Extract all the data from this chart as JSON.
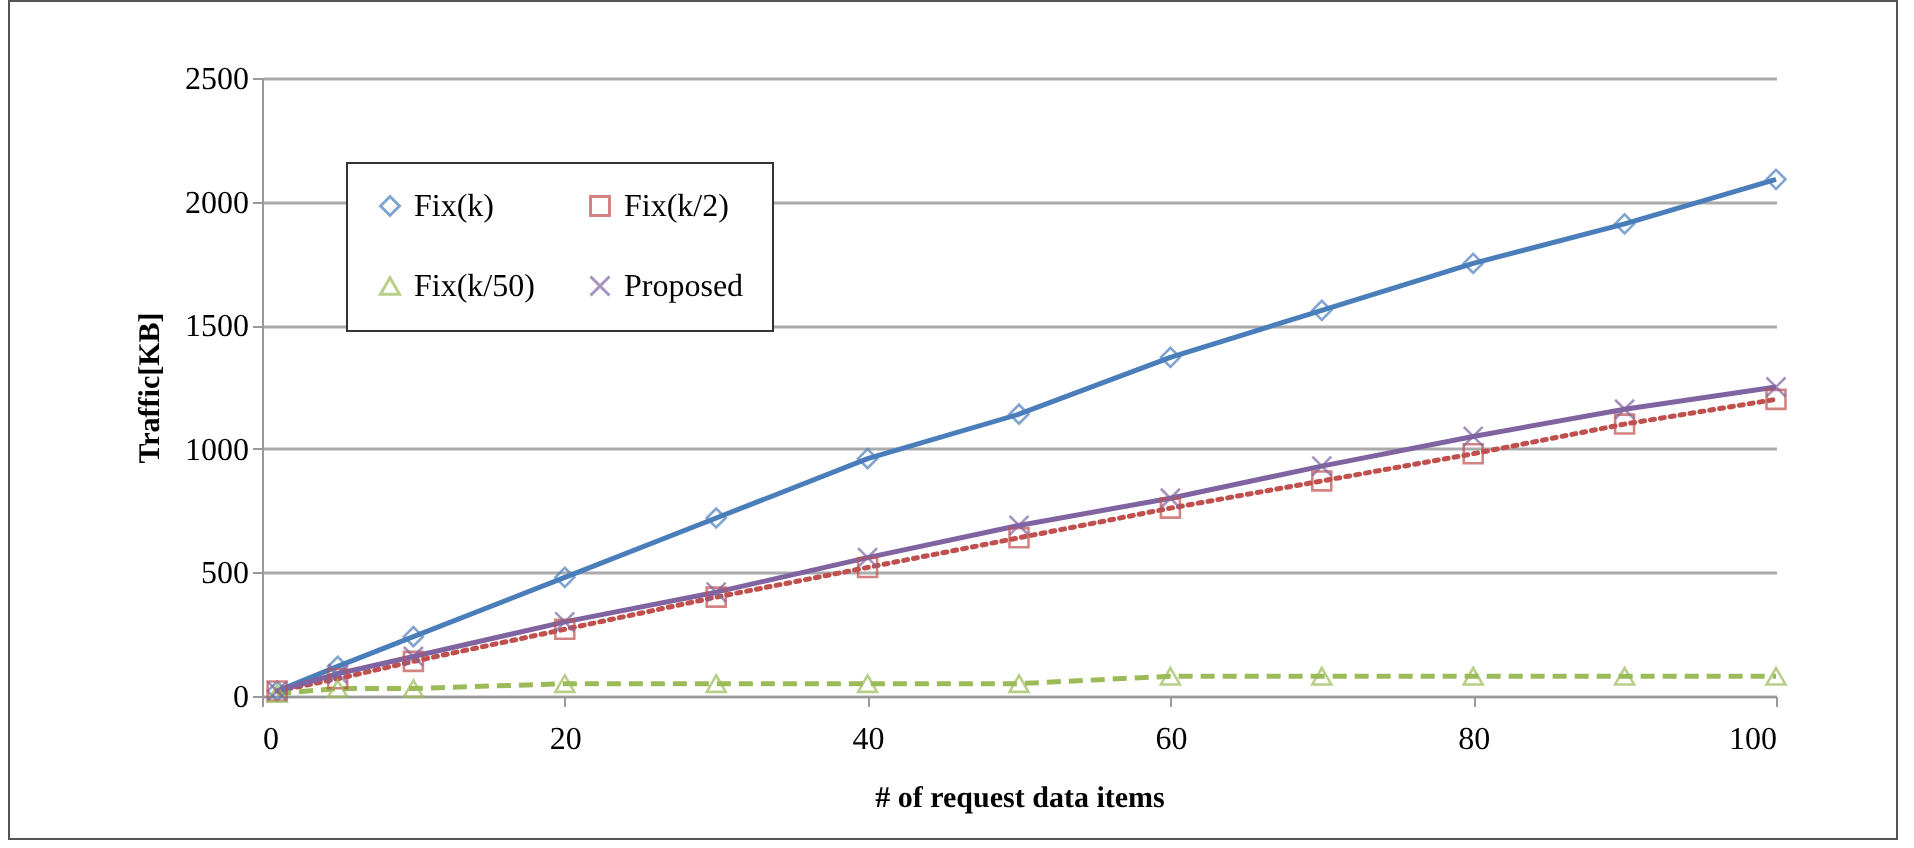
{
  "chart_data": {
    "type": "line",
    "xlabel": "# of request data items",
    "ylabel": "Traffic[KB]",
    "x": [
      1,
      5,
      10,
      20,
      30,
      40,
      50,
      60,
      70,
      80,
      90,
      100
    ],
    "series": [
      {
        "name": "Fix(k)",
        "color": "#4a7ebb",
        "marker": "diamond",
        "line_style": "solid",
        "values": [
          20,
          120,
          240,
          480,
          720,
          960,
          1140,
          1370,
          1560,
          1750,
          1910,
          2090
        ]
      },
      {
        "name": "Fix(k/2)",
        "color": "#c0504d",
        "marker": "square",
        "line_style": "dotted",
        "values": [
          20,
          70,
          140,
          270,
          400,
          520,
          640,
          760,
          870,
          980,
          1100,
          1200
        ]
      },
      {
        "name": "Fix(k/50)",
        "color": "#9bbb59",
        "marker": "triangle",
        "line_style": "dashed",
        "values": [
          10,
          30,
          30,
          50,
          50,
          50,
          50,
          80,
          80,
          80,
          80,
          80
        ]
      },
      {
        "name": "Proposed",
        "color": "#8064a2",
        "marker": "cross",
        "line_style": "solid",
        "values": [
          20,
          90,
          160,
          300,
          420,
          560,
          690,
          800,
          930,
          1050,
          1160,
          1250
        ]
      }
    ],
    "xlim": [
      0,
      100
    ],
    "xticks": [
      0,
      20,
      40,
      60,
      80,
      100
    ],
    "ylim": [
      0,
      2500
    ],
    "yticks": [
      0,
      500,
      1000,
      1500,
      2000,
      2500
    ],
    "grid": "y",
    "legend": "top left"
  }
}
